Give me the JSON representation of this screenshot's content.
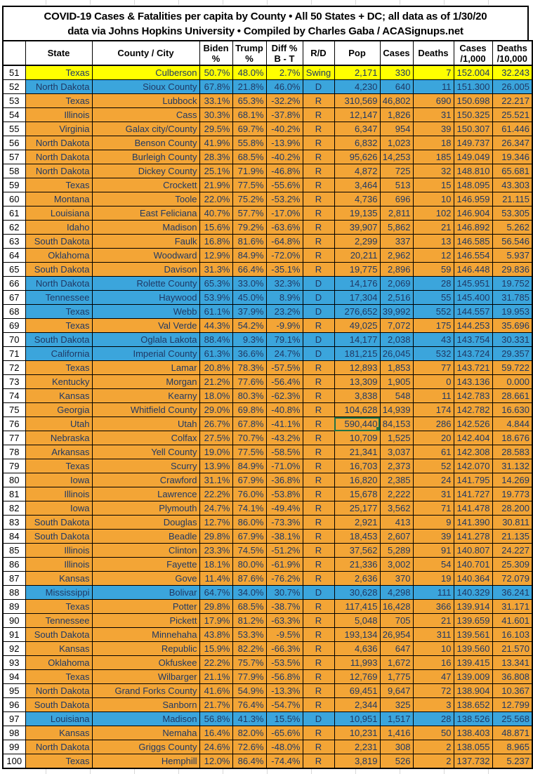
{
  "title": {
    "line1": "COVID-19 Cases & Fatalities per capita by County • All 50 States + DC; all data as of 1/30/20",
    "line2": "data via Johns Hopkins University • Compiled by Charles Gaba / ACASignups.net"
  },
  "colors": {
    "party-r": "#F3A536",
    "party-d": "#3BA5DC",
    "party-swing": "#FFFF00",
    "text-navy": "#1F3864",
    "selection-green": "#217346"
  },
  "selected_cell": {
    "rank": 76,
    "column_key": "pop",
    "value": "590,440"
  },
  "table": {
    "columns": [
      "",
      "State",
      "County / City",
      "Biden %",
      "Trump %",
      "Diff % B - T",
      "R/D",
      "Pop",
      "Cases",
      "Deaths",
      "Cases /1,000",
      "Deaths /10,000"
    ],
    "rows": [
      {
        "rank": "51",
        "state": "Texas",
        "county": "Culberson",
        "biden": "50.7%",
        "trump": "48.0%",
        "diff": "2.7%",
        "rd": "Swing",
        "pop": "2,171",
        "cases": "330",
        "deaths": "7",
        "c1000": "152.004",
        "d10000": "32.243",
        "party": "swing"
      },
      {
        "rank": "52",
        "state": "North Dakota",
        "county": "Sioux County",
        "biden": "67.8%",
        "trump": "21.8%",
        "diff": "46.0%",
        "rd": "D",
        "pop": "4,230",
        "cases": "640",
        "deaths": "11",
        "c1000": "151.300",
        "d10000": "26.005",
        "party": "d"
      },
      {
        "rank": "53",
        "state": "Texas",
        "county": "Lubbock",
        "biden": "33.1%",
        "trump": "65.3%",
        "diff": "-32.2%",
        "rd": "R",
        "pop": "310,569",
        "cases": "46,802",
        "deaths": "690",
        "c1000": "150.698",
        "d10000": "22.217",
        "party": "r"
      },
      {
        "rank": "54",
        "state": "Illinois",
        "county": "Cass",
        "biden": "30.3%",
        "trump": "68.1%",
        "diff": "-37.8%",
        "rd": "R",
        "pop": "12,147",
        "cases": "1,826",
        "deaths": "31",
        "c1000": "150.325",
        "d10000": "25.521",
        "party": "r"
      },
      {
        "rank": "55",
        "state": "Virginia",
        "county": "Galax city/County",
        "biden": "29.5%",
        "trump": "69.7%",
        "diff": "-40.2%",
        "rd": "R",
        "pop": "6,347",
        "cases": "954",
        "deaths": "39",
        "c1000": "150.307",
        "d10000": "61.446",
        "party": "r"
      },
      {
        "rank": "56",
        "state": "North Dakota",
        "county": "Benson County",
        "biden": "41.9%",
        "trump": "55.8%",
        "diff": "-13.9%",
        "rd": "R",
        "pop": "6,832",
        "cases": "1,023",
        "deaths": "18",
        "c1000": "149.737",
        "d10000": "26.347",
        "party": "r"
      },
      {
        "rank": "57",
        "state": "North Dakota",
        "county": "Burleigh County",
        "biden": "28.3%",
        "trump": "68.5%",
        "diff": "-40.2%",
        "rd": "R",
        "pop": "95,626",
        "cases": "14,253",
        "deaths": "185",
        "c1000": "149.049",
        "d10000": "19.346",
        "party": "r"
      },
      {
        "rank": "58",
        "state": "North Dakota",
        "county": "Dickey County",
        "biden": "25.1%",
        "trump": "71.9%",
        "diff": "-46.8%",
        "rd": "R",
        "pop": "4,872",
        "cases": "725",
        "deaths": "32",
        "c1000": "148.810",
        "d10000": "65.681",
        "party": "r"
      },
      {
        "rank": "59",
        "state": "Texas",
        "county": "Crockett",
        "biden": "21.9%",
        "trump": "77.5%",
        "diff": "-55.6%",
        "rd": "R",
        "pop": "3,464",
        "cases": "513",
        "deaths": "15",
        "c1000": "148.095",
        "d10000": "43.303",
        "party": "r"
      },
      {
        "rank": "60",
        "state": "Montana",
        "county": "Toole",
        "biden": "22.0%",
        "trump": "75.2%",
        "diff": "-53.2%",
        "rd": "R",
        "pop": "4,736",
        "cases": "696",
        "deaths": "10",
        "c1000": "146.959",
        "d10000": "21.115",
        "party": "r"
      },
      {
        "rank": "61",
        "state": "Louisiana",
        "county": "East Feliciana",
        "biden": "40.7%",
        "trump": "57.7%",
        "diff": "-17.0%",
        "rd": "R",
        "pop": "19,135",
        "cases": "2,811",
        "deaths": "102",
        "c1000": "146.904",
        "d10000": "53.305",
        "party": "r"
      },
      {
        "rank": "62",
        "state": "Idaho",
        "county": "Madison",
        "biden": "15.6%",
        "trump": "79.2%",
        "diff": "-63.6%",
        "rd": "R",
        "pop": "39,907",
        "cases": "5,862",
        "deaths": "21",
        "c1000": "146.892",
        "d10000": "5.262",
        "party": "r"
      },
      {
        "rank": "63",
        "state": "South Dakota",
        "county": "Faulk",
        "biden": "16.8%",
        "trump": "81.6%",
        "diff": "-64.8%",
        "rd": "R",
        "pop": "2,299",
        "cases": "337",
        "deaths": "13",
        "c1000": "146.585",
        "d10000": "56.546",
        "party": "r"
      },
      {
        "rank": "64",
        "state": "Oklahoma",
        "county": "Woodward",
        "biden": "12.9%",
        "trump": "84.9%",
        "diff": "-72.0%",
        "rd": "R",
        "pop": "20,211",
        "cases": "2,962",
        "deaths": "12",
        "c1000": "146.554",
        "d10000": "5.937",
        "party": "r"
      },
      {
        "rank": "65",
        "state": "South Dakota",
        "county": "Davison",
        "biden": "31.3%",
        "trump": "66.4%",
        "diff": "-35.1%",
        "rd": "R",
        "pop": "19,775",
        "cases": "2,896",
        "deaths": "59",
        "c1000": "146.448",
        "d10000": "29.836",
        "party": "r"
      },
      {
        "rank": "66",
        "state": "North Dakota",
        "county": "Rolette County",
        "biden": "65.3%",
        "trump": "33.0%",
        "diff": "32.3%",
        "rd": "D",
        "pop": "14,176",
        "cases": "2,069",
        "deaths": "28",
        "c1000": "145.951",
        "d10000": "19.752",
        "party": "d"
      },
      {
        "rank": "67",
        "state": "Tennessee",
        "county": "Haywood",
        "biden": "53.9%",
        "trump": "45.0%",
        "diff": "8.9%",
        "rd": "D",
        "pop": "17,304",
        "cases": "2,516",
        "deaths": "55",
        "c1000": "145.400",
        "d10000": "31.785",
        "party": "d"
      },
      {
        "rank": "68",
        "state": "Texas",
        "county": "Webb",
        "biden": "61.1%",
        "trump": "37.9%",
        "diff": "23.2%",
        "rd": "D",
        "pop": "276,652",
        "cases": "39,992",
        "deaths": "552",
        "c1000": "144.557",
        "d10000": "19.953",
        "party": "d"
      },
      {
        "rank": "69",
        "state": "Texas",
        "county": "Val Verde",
        "biden": "44.3%",
        "trump": "54.2%",
        "diff": "-9.9%",
        "rd": "R",
        "pop": "49,025",
        "cases": "7,072",
        "deaths": "175",
        "c1000": "144.253",
        "d10000": "35.696",
        "party": "r"
      },
      {
        "rank": "70",
        "state": "South Dakota",
        "county": "Oglala Lakota",
        "biden": "88.4%",
        "trump": "9.3%",
        "diff": "79.1%",
        "rd": "D",
        "pop": "14,177",
        "cases": "2,038",
        "deaths": "43",
        "c1000": "143.754",
        "d10000": "30.331",
        "party": "d"
      },
      {
        "rank": "71",
        "state": "California",
        "county": "Imperial County",
        "biden": "61.3%",
        "trump": "36.6%",
        "diff": "24.7%",
        "rd": "D",
        "pop": "181,215",
        "cases": "26,045",
        "deaths": "532",
        "c1000": "143.724",
        "d10000": "29.357",
        "party": "d"
      },
      {
        "rank": "72",
        "state": "Texas",
        "county": "Lamar",
        "biden": "20.8%",
        "trump": "78.3%",
        "diff": "-57.5%",
        "rd": "R",
        "pop": "12,893",
        "cases": "1,853",
        "deaths": "77",
        "c1000": "143.721",
        "d10000": "59.722",
        "party": "r"
      },
      {
        "rank": "73",
        "state": "Kentucky",
        "county": "Morgan",
        "biden": "21.2%",
        "trump": "77.6%",
        "diff": "-56.4%",
        "rd": "R",
        "pop": "13,309",
        "cases": "1,905",
        "deaths": "0",
        "c1000": "143.136",
        "d10000": "0.000",
        "party": "r"
      },
      {
        "rank": "74",
        "state": "Kansas",
        "county": "Kearny",
        "biden": "18.0%",
        "trump": "80.3%",
        "diff": "-62.3%",
        "rd": "R",
        "pop": "3,838",
        "cases": "548",
        "deaths": "11",
        "c1000": "142.783",
        "d10000": "28.661",
        "party": "r"
      },
      {
        "rank": "75",
        "state": "Georgia",
        "county": "Whitfield County",
        "biden": "29.0%",
        "trump": "69.8%",
        "diff": "-40.8%",
        "rd": "R",
        "pop": "104,628",
        "cases": "14,939",
        "deaths": "174",
        "c1000": "142.782",
        "d10000": "16.630",
        "party": "r"
      },
      {
        "rank": "76",
        "state": "Utah",
        "county": "Utah",
        "biden": "26.7%",
        "trump": "67.8%",
        "diff": "-41.1%",
        "rd": "R",
        "pop": "590,440",
        "cases": "84,153",
        "deaths": "286",
        "c1000": "142.526",
        "d10000": "4.844",
        "party": "r"
      },
      {
        "rank": "77",
        "state": "Nebraska",
        "county": "Colfax",
        "biden": "27.5%",
        "trump": "70.7%",
        "diff": "-43.2%",
        "rd": "R",
        "pop": "10,709",
        "cases": "1,525",
        "deaths": "20",
        "c1000": "142.404",
        "d10000": "18.676",
        "party": "r"
      },
      {
        "rank": "78",
        "state": "Arkansas",
        "county": "Yell County",
        "biden": "19.0%",
        "trump": "77.5%",
        "diff": "-58.5%",
        "rd": "R",
        "pop": "21,341",
        "cases": "3,037",
        "deaths": "61",
        "c1000": "142.308",
        "d10000": "28.583",
        "party": "r"
      },
      {
        "rank": "79",
        "state": "Texas",
        "county": "Scurry",
        "biden": "13.9%",
        "trump": "84.9%",
        "diff": "-71.0%",
        "rd": "R",
        "pop": "16,703",
        "cases": "2,373",
        "deaths": "52",
        "c1000": "142.070",
        "d10000": "31.132",
        "party": "r"
      },
      {
        "rank": "80",
        "state": "Iowa",
        "county": "Crawford",
        "biden": "31.1%",
        "trump": "67.9%",
        "diff": "-36.8%",
        "rd": "R",
        "pop": "16,820",
        "cases": "2,385",
        "deaths": "24",
        "c1000": "141.795",
        "d10000": "14.269",
        "party": "r"
      },
      {
        "rank": "81",
        "state": "Illinois",
        "county": "Lawrence",
        "biden": "22.2%",
        "trump": "76.0%",
        "diff": "-53.8%",
        "rd": "R",
        "pop": "15,678",
        "cases": "2,222",
        "deaths": "31",
        "c1000": "141.727",
        "d10000": "19.773",
        "party": "r"
      },
      {
        "rank": "82",
        "state": "Iowa",
        "county": "Plymouth",
        "biden": "24.7%",
        "trump": "74.1%",
        "diff": "-49.4%",
        "rd": "R",
        "pop": "25,177",
        "cases": "3,562",
        "deaths": "71",
        "c1000": "141.478",
        "d10000": "28.200",
        "party": "r"
      },
      {
        "rank": "83",
        "state": "South Dakota",
        "county": "Douglas",
        "biden": "12.7%",
        "trump": "86.0%",
        "diff": "-73.3%",
        "rd": "R",
        "pop": "2,921",
        "cases": "413",
        "deaths": "9",
        "c1000": "141.390",
        "d10000": "30.811",
        "party": "r"
      },
      {
        "rank": "84",
        "state": "South Dakota",
        "county": "Beadle",
        "biden": "29.8%",
        "trump": "67.9%",
        "diff": "-38.1%",
        "rd": "R",
        "pop": "18,453",
        "cases": "2,607",
        "deaths": "39",
        "c1000": "141.278",
        "d10000": "21.135",
        "party": "r"
      },
      {
        "rank": "85",
        "state": "Illinois",
        "county": "Clinton",
        "biden": "23.3%",
        "trump": "74.5%",
        "diff": "-51.2%",
        "rd": "R",
        "pop": "37,562",
        "cases": "5,289",
        "deaths": "91",
        "c1000": "140.807",
        "d10000": "24.227",
        "party": "r"
      },
      {
        "rank": "86",
        "state": "Illinois",
        "county": "Fayette",
        "biden": "18.1%",
        "trump": "80.0%",
        "diff": "-61.9%",
        "rd": "R",
        "pop": "21,336",
        "cases": "3,002",
        "deaths": "54",
        "c1000": "140.701",
        "d10000": "25.309",
        "party": "r"
      },
      {
        "rank": "87",
        "state": "Kansas",
        "county": "Gove",
        "biden": "11.4%",
        "trump": "87.6%",
        "diff": "-76.2%",
        "rd": "R",
        "pop": "2,636",
        "cases": "370",
        "deaths": "19",
        "c1000": "140.364",
        "d10000": "72.079",
        "party": "r"
      },
      {
        "rank": "88",
        "state": "Mississippi",
        "county": "Bolivar",
        "biden": "64.7%",
        "trump": "34.0%",
        "diff": "30.7%",
        "rd": "D",
        "pop": "30,628",
        "cases": "4,298",
        "deaths": "111",
        "c1000": "140.329",
        "d10000": "36.241",
        "party": "d"
      },
      {
        "rank": "89",
        "state": "Texas",
        "county": "Potter",
        "biden": "29.8%",
        "trump": "68.5%",
        "diff": "-38.7%",
        "rd": "R",
        "pop": "117,415",
        "cases": "16,428",
        "deaths": "366",
        "c1000": "139.914",
        "d10000": "31.171",
        "party": "r"
      },
      {
        "rank": "90",
        "state": "Tennessee",
        "county": "Pickett",
        "biden": "17.9%",
        "trump": "81.2%",
        "diff": "-63.3%",
        "rd": "R",
        "pop": "5,048",
        "cases": "705",
        "deaths": "21",
        "c1000": "139.659",
        "d10000": "41.601",
        "party": "r"
      },
      {
        "rank": "91",
        "state": "South Dakota",
        "county": "Minnehaha",
        "biden": "43.8%",
        "trump": "53.3%",
        "diff": "-9.5%",
        "rd": "R",
        "pop": "193,134",
        "cases": "26,954",
        "deaths": "311",
        "c1000": "139.561",
        "d10000": "16.103",
        "party": "r"
      },
      {
        "rank": "92",
        "state": "Kansas",
        "county": "Republic",
        "biden": "15.9%",
        "trump": "82.2%",
        "diff": "-66.3%",
        "rd": "R",
        "pop": "4,636",
        "cases": "647",
        "deaths": "10",
        "c1000": "139.560",
        "d10000": "21.570",
        "party": "r"
      },
      {
        "rank": "93",
        "state": "Oklahoma",
        "county": "Okfuskee",
        "biden": "22.2%",
        "trump": "75.7%",
        "diff": "-53.5%",
        "rd": "R",
        "pop": "11,993",
        "cases": "1,672",
        "deaths": "16",
        "c1000": "139.415",
        "d10000": "13.341",
        "party": "r"
      },
      {
        "rank": "94",
        "state": "Texas",
        "county": "Wilbarger",
        "biden": "21.1%",
        "trump": "77.9%",
        "diff": "-56.8%",
        "rd": "R",
        "pop": "12,769",
        "cases": "1,775",
        "deaths": "47",
        "c1000": "139.009",
        "d10000": "36.808",
        "party": "r"
      },
      {
        "rank": "95",
        "state": "North Dakota",
        "county": "Grand Forks County",
        "biden": "41.6%",
        "trump": "54.9%",
        "diff": "-13.3%",
        "rd": "R",
        "pop": "69,451",
        "cases": "9,647",
        "deaths": "72",
        "c1000": "138.904",
        "d10000": "10.367",
        "party": "r"
      },
      {
        "rank": "96",
        "state": "South Dakota",
        "county": "Sanborn",
        "biden": "21.7%",
        "trump": "76.4%",
        "diff": "-54.7%",
        "rd": "R",
        "pop": "2,344",
        "cases": "325",
        "deaths": "3",
        "c1000": "138.652",
        "d10000": "12.799",
        "party": "r"
      },
      {
        "rank": "97",
        "state": "Louisiana",
        "county": "Madison",
        "biden": "56.8%",
        "trump": "41.3%",
        "diff": "15.5%",
        "rd": "D",
        "pop": "10,951",
        "cases": "1,517",
        "deaths": "28",
        "c1000": "138.526",
        "d10000": "25.568",
        "party": "d"
      },
      {
        "rank": "98",
        "state": "Kansas",
        "county": "Nemaha",
        "biden": "16.4%",
        "trump": "82.0%",
        "diff": "-65.6%",
        "rd": "R",
        "pop": "10,231",
        "cases": "1,416",
        "deaths": "50",
        "c1000": "138.403",
        "d10000": "48.871",
        "party": "r"
      },
      {
        "rank": "99",
        "state": "North Dakota",
        "county": "Griggs County",
        "biden": "24.6%",
        "trump": "72.6%",
        "diff": "-48.0%",
        "rd": "R",
        "pop": "2,231",
        "cases": "308",
        "deaths": "2",
        "c1000": "138.055",
        "d10000": "8.965",
        "party": "r"
      },
      {
        "rank": "100",
        "state": "Texas",
        "county": "Hemphill",
        "biden": "12.0%",
        "trump": "86.4%",
        "diff": "-74.4%",
        "rd": "R",
        "pop": "3,819",
        "cases": "526",
        "deaths": "2",
        "c1000": "137.732",
        "d10000": "5.237",
        "party": "r"
      }
    ]
  }
}
